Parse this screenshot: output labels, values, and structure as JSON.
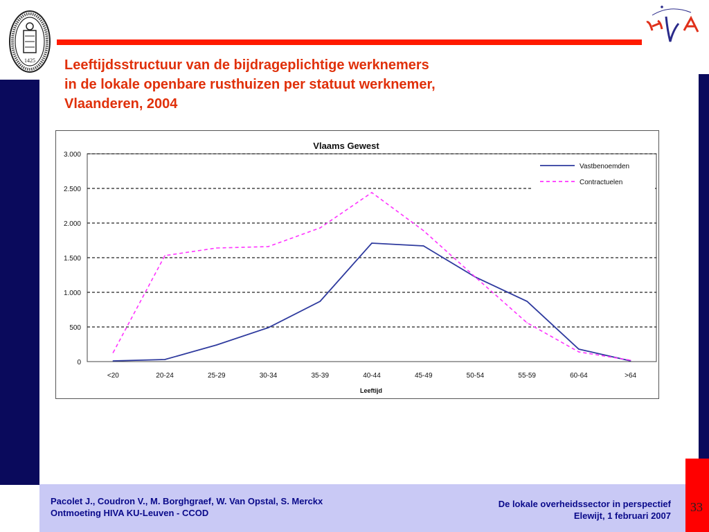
{
  "slide": {
    "title_lines": [
      "Leeftijdsstructuur van de bijdrageplichtige werknemers",
      "in de lokale openbare rusthuizen per statuut werknemer,",
      "Vlaanderen, 2004"
    ],
    "logo_seal_text": "1425",
    "logo_brand_text": "HIVA",
    "footer_left": [
      "Pacolet J., Coudron V., M. Borghgraef, W. Van Opstal, S. Merckx",
      "Ontmoeting HIVA KU-Leuven - CCOD"
    ],
    "footer_right": [
      "De lokale overheidssector in perspectief",
      "Elewijt, 1 februari 2007"
    ],
    "page_number": "33"
  },
  "colors": {
    "title": "#e0300a",
    "navy": "#0a0a5c",
    "red": "#ff1a00",
    "footer_band": "#c9c9f5",
    "series_vast": "#2e3a9e",
    "series_contract": "#ff33ff"
  },
  "chart_data": {
    "type": "line",
    "title": "Vlaams Gewest",
    "xlabel": "Leeftijd",
    "ylabel": "",
    "categories": [
      "<20",
      "20-24",
      "25-29",
      "30-34",
      "35-39",
      "40-44",
      "45-49",
      "50-54",
      "55-59",
      "60-64",
      ">64"
    ],
    "ylim": [
      0,
      3000
    ],
    "yticks": [
      0,
      500,
      1000,
      1500,
      2000,
      2500,
      3000
    ],
    "ytick_labels": [
      "0",
      "500",
      "1.000",
      "1.500",
      "2.000",
      "2.500",
      "3.000"
    ],
    "grid": "horizontal dashed",
    "legend_position": "top-right",
    "series": [
      {
        "name": "Vastbenoemden",
        "style": "solid",
        "values": [
          10,
          30,
          240,
          490,
          870,
          1710,
          1670,
          1220,
          870,
          180,
          10
        ]
      },
      {
        "name": "Contractuelen",
        "style": "dashed",
        "values": [
          130,
          1530,
          1640,
          1660,
          1930,
          2440,
          1890,
          1220,
          560,
          140,
          20
        ]
      }
    ]
  }
}
